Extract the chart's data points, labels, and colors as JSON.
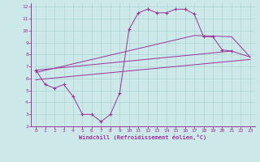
{
  "xlabel": "Windchill (Refroidissement éolien,°C)",
  "background_color": "#cce8e8",
  "line_color": "#993399",
  "grid_color": "#aad4d4",
  "xlim": [
    -0.5,
    23.5
  ],
  "ylim": [
    2,
    12.3
  ],
  "xticks": [
    0,
    1,
    2,
    3,
    4,
    5,
    6,
    7,
    8,
    9,
    10,
    11,
    12,
    13,
    14,
    15,
    16,
    17,
    18,
    19,
    20,
    21,
    22,
    23
  ],
  "yticks": [
    2,
    3,
    4,
    5,
    6,
    7,
    8,
    9,
    10,
    11,
    12
  ],
  "curve1_x": [
    0,
    1,
    2,
    3,
    4,
    5,
    6,
    7,
    8,
    9,
    10,
    11,
    12,
    13,
    14,
    15,
    16,
    17,
    18,
    19,
    20,
    21
  ],
  "curve1_y": [
    6.7,
    5.5,
    5.2,
    5.5,
    4.5,
    3.0,
    3.0,
    2.4,
    3.0,
    4.8,
    10.1,
    11.5,
    11.8,
    11.5,
    11.5,
    11.8,
    11.8,
    11.4,
    9.5,
    9.5,
    8.4,
    8.3
  ],
  "curve2_x": [
    0,
    21,
    23
  ],
  "curve2_y": [
    6.7,
    8.3,
    7.8
  ],
  "curve3_x": [
    0,
    17,
    21,
    23
  ],
  "curve3_y": [
    6.5,
    9.6,
    9.5,
    7.8
  ],
  "curve4_x": [
    0,
    23
  ],
  "curve4_y": [
    5.9,
    7.6
  ]
}
